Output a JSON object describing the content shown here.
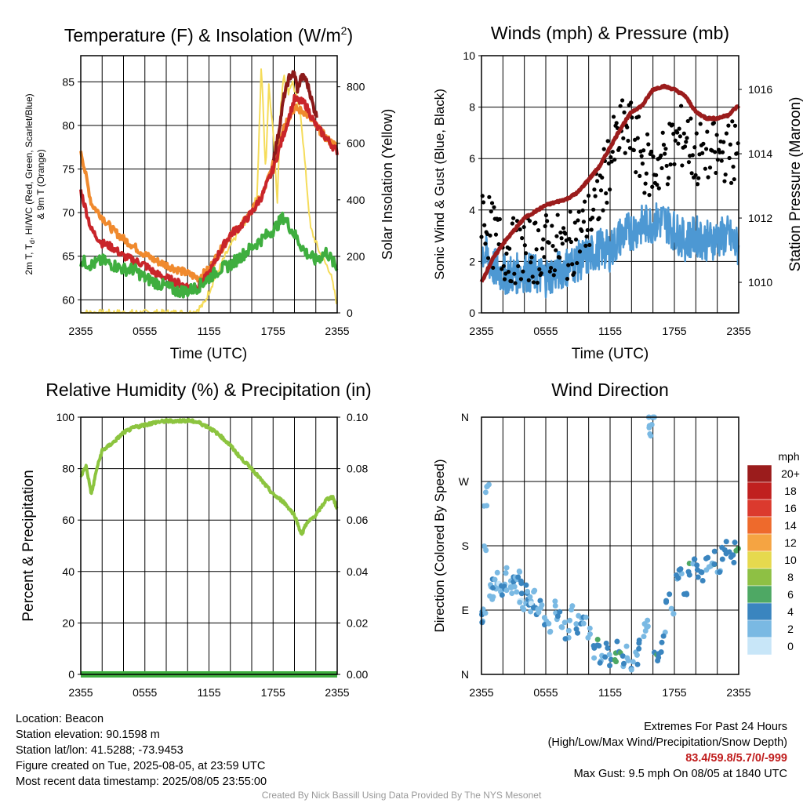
{
  "panels": {
    "temp": {
      "title_main": "Temperature (F) & Insolation (W/m",
      "title_sup": "2",
      "title_end": ")",
      "ylabel_left_1": "2m T, T",
      "ylabel_left_sub": "d",
      "ylabel_left_2": ", HI/WC (Red, Green, Scarlet/Blue)",
      "ylabel_left_3": "& 9m T (Orange)",
      "ylabel_right": "Solar Insolation (Yellow)",
      "xlabel": "Time (UTC)"
    },
    "wind": {
      "title": "Winds (mph) & Pressure (mb)",
      "ylabel_left": "Sonic Wind & Gust (Blue, Black)",
      "ylabel_right": "Station Pressure (Maroon)",
      "xlabel": "Time (UTC)"
    },
    "rh": {
      "title": "Relative Humidity (%) & Precipitation (in)",
      "ylabel_left": "Percent & Precipitation"
    },
    "dir": {
      "title": "Wind Direction",
      "ylabel_left": "Direction (Colored By Speed)",
      "colorbar_title": "mph",
      "colorbar_labels": [
        "20+",
        "18",
        "16",
        "14",
        "12",
        "10",
        "8",
        "6",
        "4",
        "2",
        "0"
      ],
      "colorbar_colors": [
        "#9b1c1c",
        "#c0201f",
        "#db3a2e",
        "#ee6a2c",
        "#f5a442",
        "#e6d94e",
        "#8ec044",
        "#4ea864",
        "#3a85bf",
        "#7ab9e3",
        "#c8e6f8"
      ]
    }
  },
  "info": {
    "location": "Location: Beacon",
    "elevation": "Station elevation: 90.1598 m",
    "latlon": "Station lat/lon: 41.5288; -73.9453",
    "created": "Figure created on Tue, 2025-08-05, at 23:59 UTC",
    "recent": "Most recent data timestamp: 2025/08/05 23:55:00",
    "extremes_title": "Extremes For Past 24 Hours",
    "extremes_sub": "(High/Low/Max Wind/Precipitation/Snow Depth)",
    "extremes_values": "83.4/59.8/5.7/0/-999",
    "max_gust": "Max Gust: 9.5 mph On 08/05 at 1840 UTC",
    "credit": "Created By Nick Bassill Using Data Provided By The NYS Mesonet"
  },
  "colors": {
    "temperature": "#c9252a",
    "dewpoint": "#3fae3f",
    "heat_index": "#8b1a1a",
    "temp_9m": "#f08a2e",
    "insolation": "#f5dc5a",
    "wind": "#4d98d3",
    "gust": "#000000",
    "pressure": "#9b1c1c",
    "rh": "#8cc43f",
    "precip": "#3fae3f"
  },
  "chart_data": [
    {
      "id": "temp",
      "type": "line",
      "x_ticks": [
        "2355",
        "0555",
        "1155",
        "1755",
        "2355"
      ],
      "ylim": [
        58.5,
        88
      ],
      "y_ticks": [
        60,
        65,
        70,
        75,
        80,
        85
      ],
      "y2lim": [
        0,
        910
      ],
      "y2_ticks": [
        0,
        200,
        400,
        600,
        800
      ],
      "series": [
        {
          "key": "t9m",
          "axis": "left",
          "x": [
            0,
            1,
            2,
            3,
            4,
            5,
            6,
            7,
            8,
            9,
            10,
            11,
            12,
            13,
            14,
            15,
            16,
            17,
            18,
            19,
            20,
            21,
            22,
            23,
            24
          ],
          "values": [
            77.2,
            71,
            69.5,
            68,
            67,
            66.1,
            65.2,
            64.5,
            64,
            63.5,
            63,
            62.5,
            63.5,
            65.5,
            67.5,
            68.5,
            70.2,
            72,
            75.5,
            80,
            82,
            81.5,
            80,
            78.5,
            77.5
          ]
        },
        {
          "key": "temp",
          "axis": "left",
          "x": [
            0,
            1,
            2,
            3,
            4,
            5,
            6,
            7,
            8,
            9,
            10,
            11,
            12,
            13,
            14,
            15,
            16,
            17,
            18,
            19,
            20,
            21,
            22,
            23,
            24
          ],
          "values": [
            72.5,
            68,
            66.5,
            66,
            65,
            64.5,
            64,
            63,
            62.5,
            62,
            61.5,
            61.5,
            63,
            65.5,
            67.5,
            68.5,
            70,
            72,
            75,
            79,
            83,
            82.5,
            80,
            78.5,
            77
          ]
        },
        {
          "key": "hi",
          "axis": "left",
          "x": [
            18,
            18.5,
            19,
            19.5,
            20,
            20.3,
            20.6,
            21,
            21.4,
            21.8,
            22.1
          ],
          "values": [
            76,
            79,
            83.2,
            85.5,
            86,
            84,
            85.5,
            85.5,
            84,
            82,
            81
          ]
        },
        {
          "key": "dew",
          "axis": "left",
          "x": [
            0,
            1,
            2,
            3,
            4,
            5,
            6,
            7,
            8,
            9,
            10,
            11,
            12,
            13,
            14,
            15,
            16,
            17,
            18,
            19,
            20,
            21,
            22,
            23,
            24
          ],
          "values": [
            64.5,
            64,
            64.5,
            64,
            63.5,
            63.5,
            62.5,
            62,
            61.5,
            61,
            61,
            61.5,
            62.5,
            63.5,
            64,
            65,
            66,
            67,
            68,
            69.5,
            67.5,
            65.5,
            64.5,
            65.5,
            63.5
          ]
        },
        {
          "key": "ins",
          "axis": "right",
          "x": [
            0,
            5.5,
            10.5,
            11.5,
            12.5,
            13.5,
            14.5,
            15.5,
            16.5,
            16.9,
            17.3,
            17.6,
            18,
            18.4,
            18.7,
            19,
            19.4,
            19.8,
            20.2,
            20.6,
            21,
            21.5,
            22.5,
            23.3,
            24
          ],
          "values": [
            0,
            0,
            0,
            30,
            120,
            200,
            270,
            330,
            410,
            880,
            500,
            800,
            650,
            400,
            720,
            850,
            780,
            820,
            760,
            700,
            520,
            300,
            200,
            150,
            30
          ]
        }
      ]
    },
    {
      "id": "wind",
      "type": "line",
      "x_ticks": [
        "2355",
        "0555",
        "1155",
        "1755",
        "2355"
      ],
      "ylim": [
        0,
        10
      ],
      "y_ticks": [
        0,
        2,
        4,
        6,
        8,
        10
      ],
      "y2lim": [
        1009.05,
        1017.05
      ],
      "y2_ticks": [
        1010,
        1012,
        1014,
        1016
      ],
      "series": [
        {
          "key": "wind",
          "axis": "left",
          "x": [
            0,
            1,
            2,
            3,
            4,
            5,
            6,
            7,
            8,
            9,
            10,
            11,
            12,
            13,
            14,
            15,
            16,
            17,
            18,
            19,
            20,
            21,
            22,
            23,
            24
          ],
          "values": [
            2.5,
            1.8,
            1.5,
            1.5,
            1.6,
            1.5,
            1.4,
            1.6,
            1.8,
            2,
            2.2,
            2.5,
            2.4,
            3,
            3.2,
            3.4,
            3.5,
            3.6,
            3.2,
            2.8,
            3,
            2.8,
            2.9,
            3,
            2.5
          ]
        },
        {
          "key": "gust",
          "axis": "left",
          "x": [
            0,
            1,
            2,
            3,
            4,
            5,
            6,
            7,
            8,
            9,
            10,
            11,
            12,
            13,
            14,
            15,
            16,
            17,
            18,
            19,
            20,
            21,
            22,
            23,
            24
          ],
          "values": [
            4,
            3,
            2.5,
            2.4,
            2.5,
            2.4,
            2.6,
            2.6,
            2.5,
            3,
            3.5,
            4.5,
            6,
            7,
            7,
            6,
            5.5,
            6,
            6.5,
            7,
            6,
            6.5,
            6,
            6.5,
            6
          ]
        },
        {
          "key": "pres",
          "axis": "right",
          "x": [
            0,
            1,
            2,
            3,
            4,
            5,
            6,
            7,
            8,
            9,
            10,
            11,
            12,
            13,
            14,
            15,
            16,
            17,
            18,
            19,
            20,
            21,
            22,
            23,
            24
          ],
          "values": [
            1010,
            1010.7,
            1011.2,
            1011.6,
            1012,
            1012.2,
            1012.4,
            1012.5,
            1012.6,
            1012.8,
            1013.2,
            1013.6,
            1014.2,
            1014.8,
            1015.3,
            1015.5,
            1016,
            1016.1,
            1016,
            1015.8,
            1015.3,
            1015.1,
            1015.1,
            1015.2,
            1015.5
          ]
        }
      ]
    },
    {
      "id": "rh",
      "type": "line",
      "x_ticks": [
        "2355",
        "0555",
        "1155",
        "1755",
        "2355"
      ],
      "ylim": [
        0,
        100
      ],
      "y_ticks": [
        0,
        20,
        40,
        60,
        80,
        100
      ],
      "y2lim": [
        0,
        0.1
      ],
      "y2_ticks": [
        "0.00",
        "0.02",
        "0.04",
        "0.06",
        "0.08",
        "0.10"
      ],
      "series": [
        {
          "key": "rh",
          "axis": "left",
          "x": [
            0,
            0.5,
            1,
            1.5,
            2,
            3,
            4,
            5,
            6,
            7,
            8,
            9,
            10,
            11,
            12,
            13,
            14,
            15,
            16,
            17,
            18,
            19,
            20,
            20.7,
            21,
            22,
            22.5,
            23,
            23.6,
            24
          ],
          "values": [
            77,
            81,
            70,
            80,
            87,
            90,
            94,
            96,
            97,
            98,
            98.5,
            98.5,
            98.7,
            98,
            96,
            93,
            89,
            84,
            80,
            75,
            70,
            67,
            62,
            54,
            58,
            62,
            65,
            68,
            69,
            64
          ]
        },
        {
          "key": "precip",
          "axis": "right",
          "x": [
            0,
            24
          ],
          "values": [
            0,
            0
          ]
        }
      ]
    },
    {
      "id": "dir",
      "type": "scatter",
      "x_ticks": [
        "2355",
        "0555",
        "1155",
        "1755",
        "2355"
      ],
      "y_ticks": [
        "N",
        "E",
        "S",
        "W",
        "N"
      ],
      "ylim": [
        0,
        360
      ],
      "series": [
        {
          "name": "",
          "x": [
            0.1,
            0.2,
            0.3,
            0.4,
            0.6,
            0.8,
            1,
            1.2,
            1.4,
            1.6,
            1.8,
            2,
            2.2,
            2.4,
            2.6,
            2.8,
            3,
            3.2,
            3.4,
            3.6,
            3.8,
            4,
            4.2,
            4.4,
            4.6,
            4.8,
            5,
            5.3,
            5.6,
            6,
            6.4,
            6.8,
            7.2,
            7.6,
            8,
            8.4,
            8.8,
            9.2,
            9.6,
            10,
            10.4,
            10.8,
            11.2,
            11.6,
            12,
            12.4,
            12.8,
            13.2,
            13.6,
            14,
            14.4,
            14.8,
            15.2,
            15.4,
            15.6,
            15.8,
            16,
            16.3,
            16.6,
            17,
            17.4,
            17.8,
            18.2,
            18.6,
            19,
            19.4,
            19.8,
            20.2,
            20.6,
            21,
            21.4,
            21.8,
            22.2,
            22.6,
            23,
            23.4,
            23.8
          ],
          "speed": [
            3,
            2,
            1,
            2,
            1,
            2,
            1,
            3,
            2,
            1,
            2,
            2,
            3,
            2,
            1,
            2,
            3,
            2,
            2,
            1,
            3,
            2,
            3,
            2,
            2,
            1,
            3,
            2,
            3,
            2,
            1,
            2,
            3,
            2,
            2,
            1,
            3,
            2,
            2,
            3,
            2,
            4,
            3,
            4,
            3,
            6,
            4,
            3,
            2,
            3,
            2,
            3,
            2,
            2,
            1,
            2,
            3,
            4,
            4,
            3,
            3,
            2,
            3,
            2,
            3,
            4,
            3,
            4,
            3,
            3,
            2,
            4,
            3,
            4,
            3,
            3,
            4
          ],
          "values": [
            80,
            95,
            180,
            245,
            270,
            120,
            115,
            125,
            135,
            120,
            110,
            130,
            125,
            140,
            120,
            115,
            130,
            125,
            135,
            110,
            120,
            100,
            115,
            105,
            95,
            110,
            90,
            85,
            100,
            75,
            70,
            95,
            80,
            70,
            60,
            85,
            65,
            80,
            75,
            60,
            30,
            40,
            25,
            35,
            20,
            28,
            40,
            15,
            30,
            10,
            20,
            45,
            60,
            70,
            355,
            340,
            355,
            20,
            30,
            50,
            110,
            90,
            130,
            140,
            120,
            150,
            160,
            145,
            135,
            155,
            160,
            165,
            150,
            170,
            175,
            165,
            180
          ]
        }
      ]
    }
  ]
}
